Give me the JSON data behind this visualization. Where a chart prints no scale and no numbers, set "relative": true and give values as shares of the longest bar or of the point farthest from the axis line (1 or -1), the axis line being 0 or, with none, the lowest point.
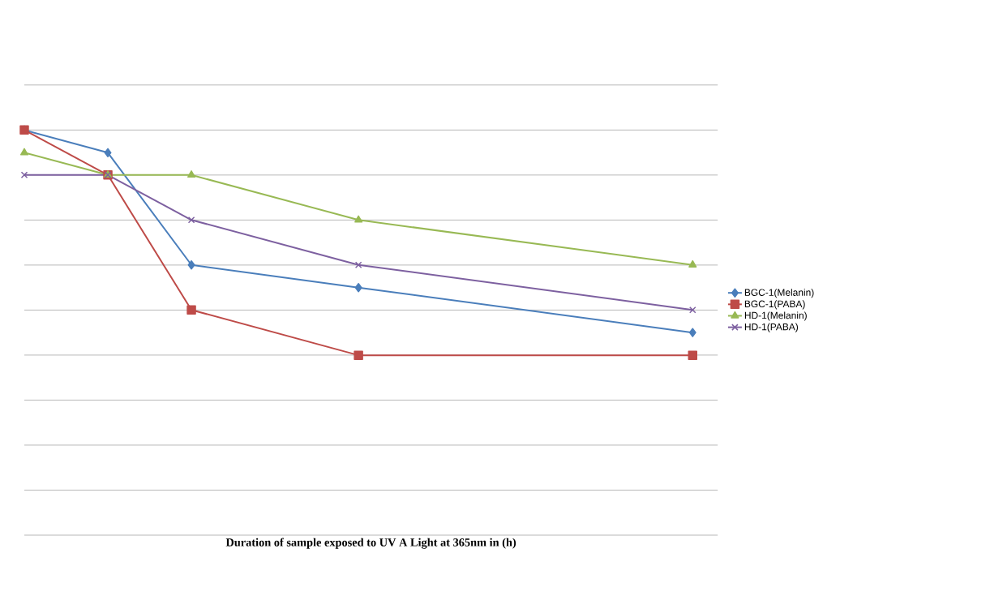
{
  "chart_data": {
    "type": "line",
    "relative": true,
    "xlabel": "Duration of sample exposed to UV A Light at 365nm in (h)",
    "categories": [
      null,
      null,
      null,
      null,
      null,
      null,
      null,
      null,
      null
    ],
    "grid": "y",
    "legend": "right",
    "line_style": "solid",
    "series": [
      {
        "name": "BGC-1(Melanin)",
        "color": "#4a7ebb",
        "marker": "diamond",
        "values": [
          1,
          0.944,
          0.667,
          null,
          0.611,
          null,
          null,
          null,
          0.5
        ]
      },
      {
        "name": "BGC-1(PABA)",
        "color": "#be4b48",
        "marker": "square",
        "values": [
          1,
          0.889,
          0.556,
          null,
          0.444,
          null,
          null,
          null,
          0.444
        ]
      },
      {
        "name": "HD-1(Melanin)",
        "color": "#98b954",
        "marker": "triangle",
        "values": [
          0.944,
          0.889,
          0.889,
          null,
          0.778,
          null,
          null,
          null,
          0.667
        ]
      },
      {
        "name": "HD-1(PABA)",
        "color": "#7d60a0",
        "marker": "cross",
        "values": [
          0.889,
          0.889,
          0.778,
          null,
          0.667,
          null,
          null,
          null,
          0.556
        ]
      }
    ]
  }
}
